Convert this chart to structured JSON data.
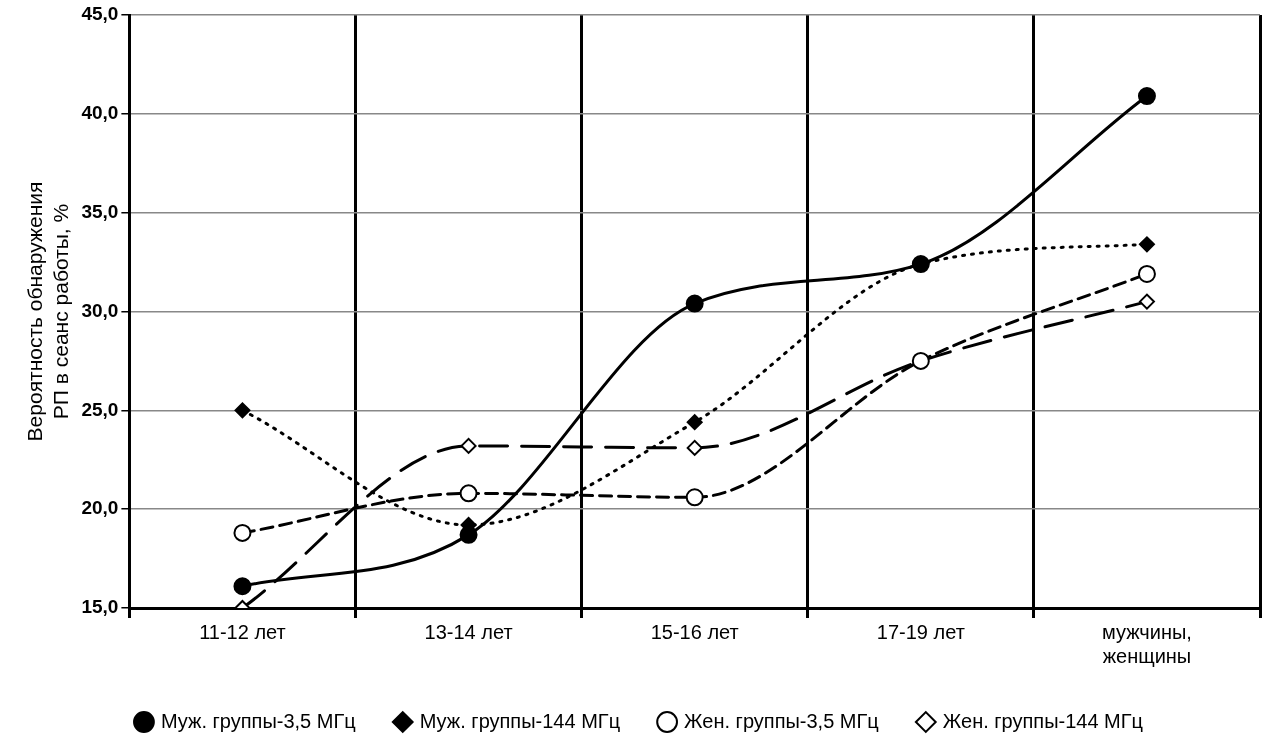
{
  "chart_data": {
    "type": "line",
    "ylabel": "Вероятность обнаружения РП в сеанс работы, %",
    "categories": [
      "11-12 лет",
      "13-14 лет",
      "15-16 лет",
      "17-19 лет",
      "мужчины, женщины"
    ],
    "series": [
      {
        "name": "Муж. группы-3,5 МГц",
        "color": "#000000",
        "marker": "circle",
        "line_style": "solid",
        "values": [
          16.1,
          18.7,
          30.4,
          32.4,
          40.9
        ]
      },
      {
        "name": "Муж. группы-144 МГц",
        "color": "#000000",
        "marker": "diamond",
        "line_style": "dotted",
        "values": [
          25.0,
          19.2,
          24.4,
          32.4,
          33.4
        ]
      },
      {
        "name": "Жен. группы-3,5 МГц",
        "color": "#000000",
        "marker": "circle",
        "line_style": "dashed",
        "values": [
          18.8,
          20.8,
          20.6,
          27.5,
          31.9
        ]
      },
      {
        "name": "Жен. группы-144 МГц",
        "color": "#000000",
        "marker": "diamond",
        "line_style": "longdash",
        "values": [
          15.0,
          23.2,
          23.1,
          27.5,
          30.5
        ]
      }
    ],
    "ylim": [
      15,
      45
    ],
    "yticks": [
      {
        "value": 15,
        "label": "15,0"
      },
      {
        "value": 20,
        "label": "20,0"
      },
      {
        "value": 25,
        "label": "25,0"
      },
      {
        "value": 30,
        "label": "30,0"
      },
      {
        "value": 35,
        "label": "35,0"
      },
      {
        "value": 40,
        "label": "40,0"
      },
      {
        "value": 45,
        "label": "45,0"
      }
    ],
    "grid": true,
    "legend": "bottom"
  }
}
